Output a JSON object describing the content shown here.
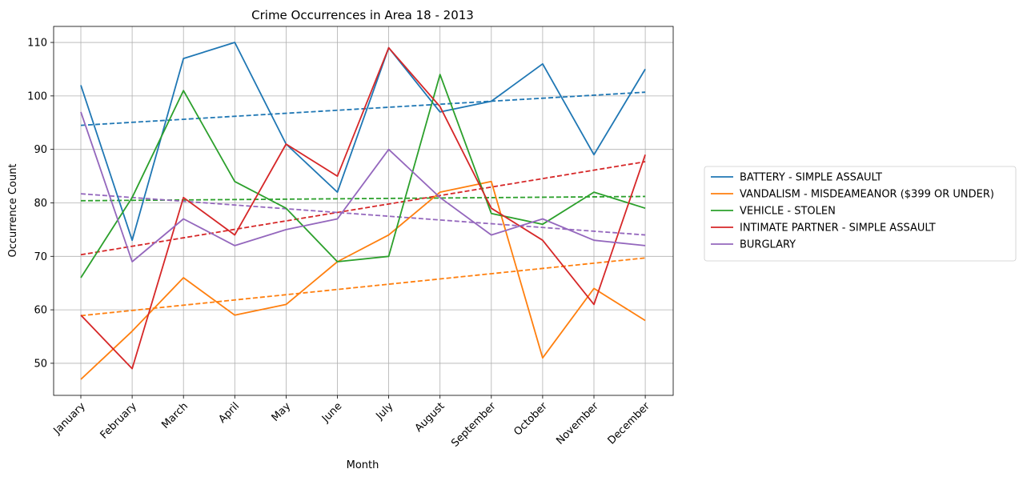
{
  "chart_data": {
    "type": "line",
    "title": "Crime Occurrences in Area 18 - 2013",
    "xlabel": "Month",
    "ylabel": "Occurrence Count",
    "categories": [
      "January",
      "February",
      "March",
      "April",
      "May",
      "June",
      "July",
      "August",
      "September",
      "October",
      "November",
      "December"
    ],
    "ylim": [
      44,
      113
    ],
    "yticks": [
      50,
      60,
      70,
      80,
      90,
      100,
      110
    ],
    "grid": true,
    "legend_position": "right",
    "series": [
      {
        "name": "BATTERY - SIMPLE ASSAULT",
        "color": "#1f77b4",
        "values": [
          102,
          73,
          107,
          110,
          91,
          82,
          109,
          97,
          99,
          106,
          89,
          105
        ],
        "trend": [
          94.5,
          100.7
        ]
      },
      {
        "name": "VANDALISM - MISDEAMEANOR ($399 OR UNDER)",
        "color": "#ff7f0e",
        "values": [
          47,
          56,
          66,
          59,
          61,
          69,
          74,
          82,
          84,
          51,
          64,
          58
        ],
        "trend": [
          58.9,
          69.7
        ]
      },
      {
        "name": "VEHICLE - STOLEN",
        "color": "#2ca02c",
        "values": [
          66,
          81,
          101,
          84,
          79,
          69,
          70,
          104,
          78,
          76,
          82,
          79
        ],
        "trend": [
          80.4,
          81.2
        ]
      },
      {
        "name": "INTIMATE PARTNER - SIMPLE ASSAULT",
        "color": "#d62728",
        "values": [
          59,
          49,
          81,
          74,
          91,
          85,
          109,
          98,
          79,
          73,
          61,
          89
        ],
        "trend": [
          70.3,
          87.7
        ]
      },
      {
        "name": "BURGLARY",
        "color": "#9467bd",
        "values": [
          97,
          69,
          77,
          72,
          75,
          77,
          90,
          81,
          74,
          77,
          73,
          72
        ],
        "trend": [
          81.7,
          74.0
        ]
      }
    ]
  }
}
